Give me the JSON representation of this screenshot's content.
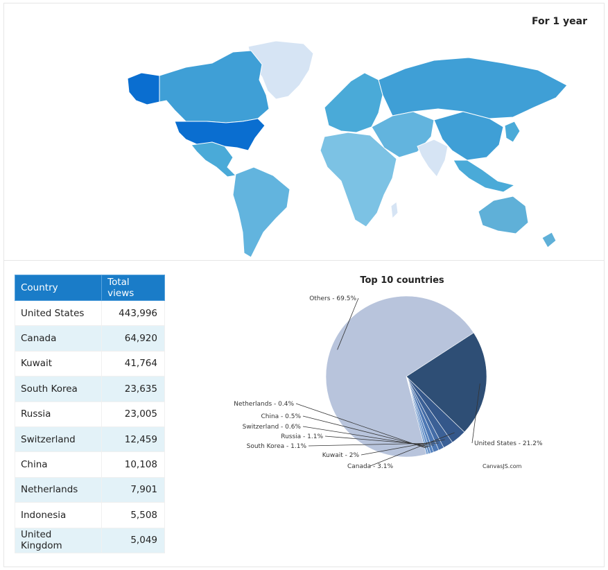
{
  "header": {
    "period_label": "For 1 year"
  },
  "table": {
    "headers": [
      "Country",
      "Total views"
    ],
    "rows": [
      {
        "country": "United States",
        "views": "443,996"
      },
      {
        "country": "Canada",
        "views": "64,920"
      },
      {
        "country": "Kuwait",
        "views": "41,764"
      },
      {
        "country": "South Korea",
        "views": "23,635"
      },
      {
        "country": "Russia",
        "views": "23,005"
      },
      {
        "country": "Switzerland",
        "views": "12,459"
      },
      {
        "country": "China",
        "views": "10,108"
      },
      {
        "country": "Netherlands",
        "views": "7,901"
      },
      {
        "country": "Indonesia",
        "views": "5,508"
      },
      {
        "country": "United Kingdom",
        "views": "5,049"
      }
    ]
  },
  "credit": "CanvasJS.com",
  "colors": {
    "header_blue": "#1a7cc8",
    "map_max": "#0a6ed0",
    "map_mid": "#4aaad8",
    "map_low": "#d4e4f4"
  },
  "chart_data": {
    "type": "pie",
    "title": "Top 10 countries",
    "slices": [
      {
        "label": "United States",
        "value": 21.2,
        "display": "United States - 21.2%",
        "color": "#2e4e75"
      },
      {
        "label": "Canada",
        "value": 3.1,
        "display": "Canada - 3.1%",
        "color": "#34578a"
      },
      {
        "label": "Kuwait",
        "value": 2,
        "display": "Kuwait - 2%",
        "color": "#3b6096"
      },
      {
        "label": "South Korea",
        "value": 1.1,
        "display": "South Korea - 1.1%",
        "color": "#446ca6"
      },
      {
        "label": "Russia",
        "value": 1.1,
        "display": "Russia - 1.1%",
        "color": "#4d78b4"
      },
      {
        "label": "Switzerland",
        "value": 0.6,
        "display": "Switzerland - 0.6%",
        "color": "#5784c0"
      },
      {
        "label": "China",
        "value": 0.5,
        "display": "China - 0.5%",
        "color": "#6590c8"
      },
      {
        "label": "Netherlands",
        "value": 0.4,
        "display": "Netherlands - 0.4%",
        "color": "#739dd0"
      },
      {
        "label": "Others",
        "value": 69.5,
        "display": "Others - 69.5%",
        "color": "#b8c4dc"
      }
    ]
  }
}
